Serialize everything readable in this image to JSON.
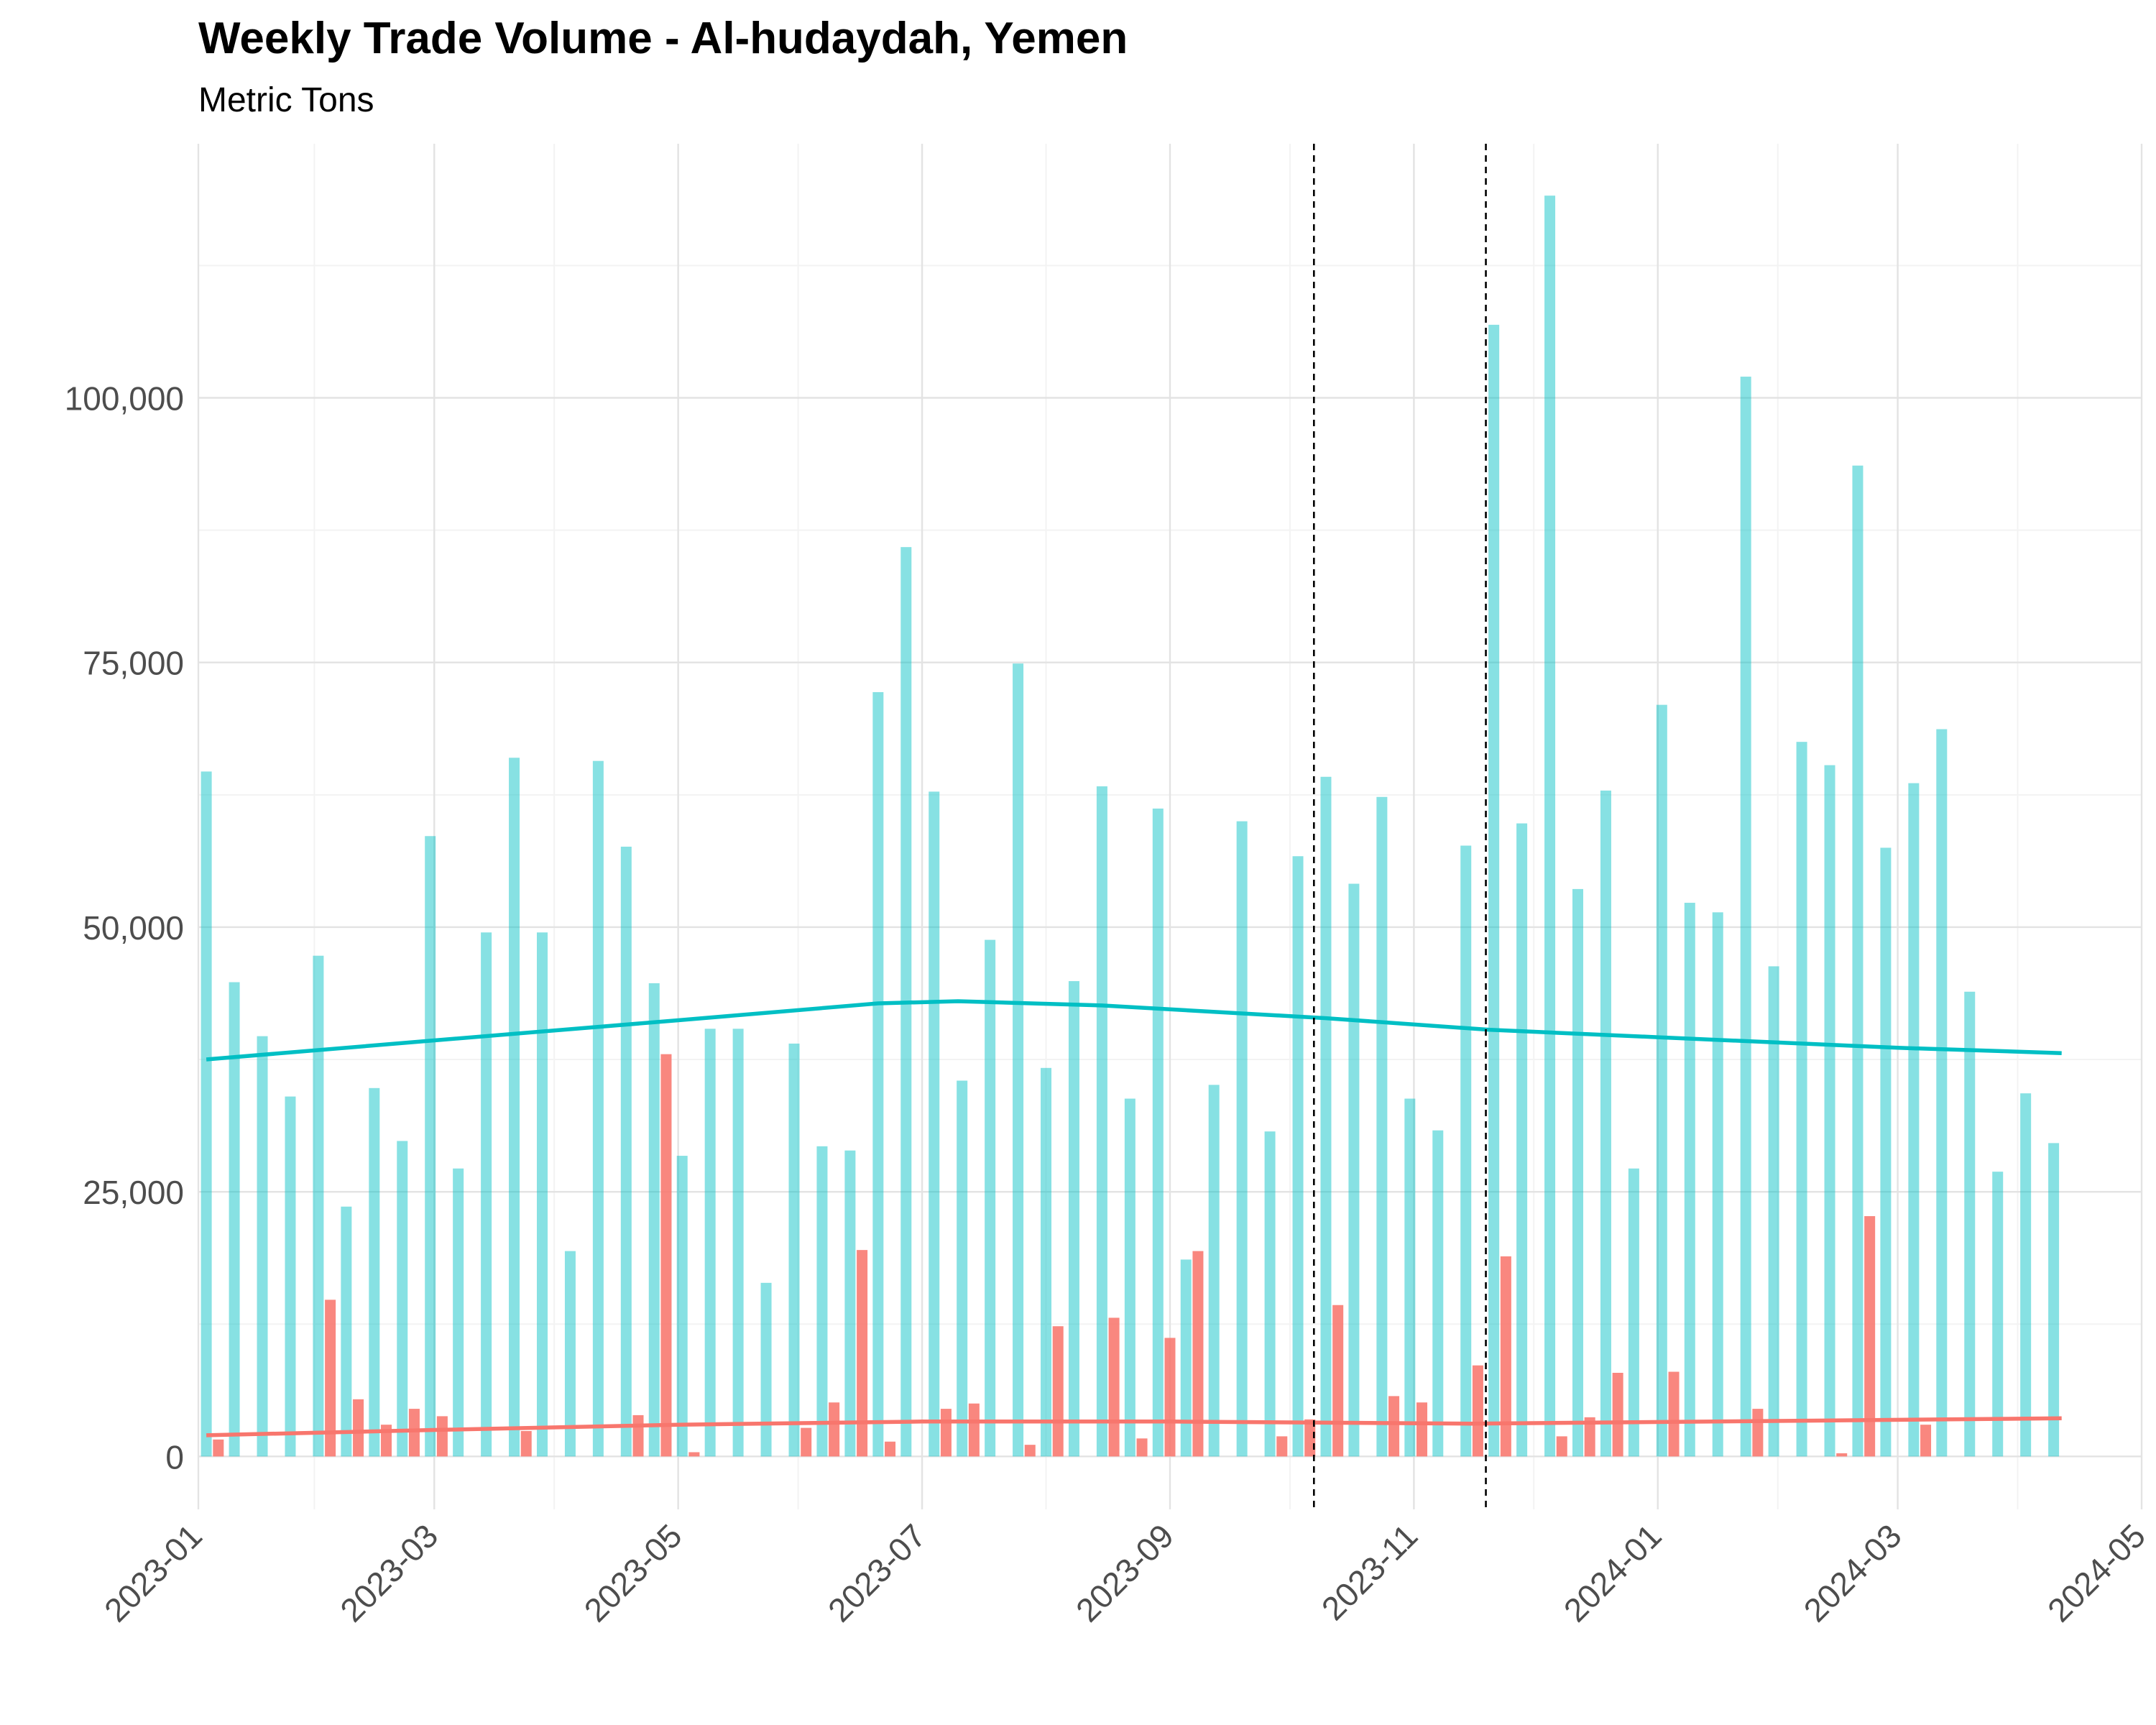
{
  "chart_data": {
    "type": "bar",
    "title": "Weekly Trade Volume - Al-hudaydah, Yemen",
    "subtitle": "Metric Tons",
    "xlabel": "",
    "ylabel": "",
    "x_axis": {
      "type": "date",
      "range": [
        "2023-01-01",
        "2024-05-01"
      ],
      "tick_labels": [
        "2023-01",
        "2023-03",
        "2023-05",
        "2023-07",
        "2023-09",
        "2023-11",
        "2024-01",
        "2024-03",
        "2024-05"
      ]
    },
    "y_axis": {
      "range": [
        -5000,
        124000
      ],
      "ticks": [
        0,
        25000,
        50000,
        75000,
        100000
      ],
      "tick_labels": [
        "0",
        "25,000",
        "50,000",
        "75,000",
        "100,000"
      ]
    },
    "grid": true,
    "legend": "none",
    "colors": {
      "cyan": "#00BFC4",
      "red": "#F8766D"
    },
    "series": [
      {
        "color": "#00BFC4",
        "kind": "bars",
        "points": [
          [
            "2023-01-03",
            64700
          ],
          [
            "2023-01-10",
            44800
          ],
          [
            "2023-01-17",
            39700
          ],
          [
            "2023-01-24",
            34000
          ],
          [
            "2023-01-31",
            47300
          ],
          [
            "2023-02-07",
            23600
          ],
          [
            "2023-02-14",
            34800
          ],
          [
            "2023-02-21",
            29800
          ],
          [
            "2023-02-28",
            58600
          ],
          [
            "2023-03-07",
            27200
          ],
          [
            "2023-03-14",
            49500
          ],
          [
            "2023-03-21",
            66000
          ],
          [
            "2023-03-28",
            49500
          ],
          [
            "2023-04-04",
            19400
          ],
          [
            "2023-04-11",
            65700
          ],
          [
            "2023-04-18",
            57600
          ],
          [
            "2023-04-25",
            44700
          ],
          [
            "2023-05-02",
            28400
          ],
          [
            "2023-05-09",
            40400
          ],
          [
            "2023-05-16",
            40400
          ],
          [
            "2023-05-23",
            16400
          ],
          [
            "2023-05-30",
            39000
          ],
          [
            "2023-06-06",
            29300
          ],
          [
            "2023-06-13",
            28900
          ],
          [
            "2023-06-20",
            72200
          ],
          [
            "2023-06-27",
            85900
          ],
          [
            "2023-07-04",
            62800
          ],
          [
            "2023-07-11",
            35500
          ],
          [
            "2023-07-18",
            48800
          ],
          [
            "2023-07-25",
            74900
          ],
          [
            "2023-08-01",
            36700
          ],
          [
            "2023-08-08",
            44900
          ],
          [
            "2023-08-15",
            63300
          ],
          [
            "2023-08-22",
            33800
          ],
          [
            "2023-08-29",
            61200
          ],
          [
            "2023-09-05",
            18600
          ],
          [
            "2023-09-12",
            35100
          ],
          [
            "2023-09-19",
            60000
          ],
          [
            "2023-09-26",
            30700
          ],
          [
            "2023-10-03",
            56700
          ],
          [
            "2023-10-10",
            64200
          ],
          [
            "2023-10-17",
            54100
          ],
          [
            "2023-10-24",
            62300
          ],
          [
            "2023-10-31",
            33800
          ],
          [
            "2023-11-07",
            30800
          ],
          [
            "2023-11-14",
            57700
          ],
          [
            "2023-11-21",
            106900
          ],
          [
            "2023-11-28",
            59800
          ],
          [
            "2023-12-05",
            119100
          ],
          [
            "2023-12-12",
            53600
          ],
          [
            "2023-12-19",
            62900
          ],
          [
            "2023-12-26",
            27200
          ],
          [
            "2024-01-02",
            71000
          ],
          [
            "2024-01-09",
            52300
          ],
          [
            "2024-01-16",
            51400
          ],
          [
            "2024-01-23",
            102000
          ],
          [
            "2024-01-30",
            46300
          ],
          [
            "2024-02-06",
            67500
          ],
          [
            "2024-02-13",
            65300
          ],
          [
            "2024-02-20",
            93600
          ],
          [
            "2024-02-27",
            57500
          ],
          [
            "2024-03-05",
            63600
          ],
          [
            "2024-03-12",
            68700
          ],
          [
            "2024-03-19",
            43900
          ],
          [
            "2024-03-26",
            26900
          ],
          [
            "2024-04-02",
            34300
          ],
          [
            "2024-04-09",
            29600
          ]
        ]
      },
      {
        "color": "#F8766D",
        "kind": "bars",
        "points": [
          [
            "2023-01-06",
            1600
          ],
          [
            "2023-02-03",
            14800
          ],
          [
            "2023-02-10",
            5400
          ],
          [
            "2023-02-17",
            3000
          ],
          [
            "2023-02-24",
            4500
          ],
          [
            "2023-03-03",
            3800
          ],
          [
            "2023-03-24",
            2400
          ],
          [
            "2023-04-21",
            3900
          ],
          [
            "2023-04-28",
            38000
          ],
          [
            "2023-05-05",
            400
          ],
          [
            "2023-06-02",
            2700
          ],
          [
            "2023-06-09",
            5100
          ],
          [
            "2023-06-16",
            19500
          ],
          [
            "2023-06-23",
            1400
          ],
          [
            "2023-07-07",
            4500
          ],
          [
            "2023-07-14",
            5000
          ],
          [
            "2023-07-28",
            1100
          ],
          [
            "2023-08-04",
            12300
          ],
          [
            "2023-08-18",
            13100
          ],
          [
            "2023-08-25",
            1700
          ],
          [
            "2023-09-01",
            11200
          ],
          [
            "2023-09-08",
            19400
          ],
          [
            "2023-09-29",
            1900
          ],
          [
            "2023-10-06",
            3500
          ],
          [
            "2023-10-13",
            14300
          ],
          [
            "2023-10-27",
            5700
          ],
          [
            "2023-11-03",
            5100
          ],
          [
            "2023-11-17",
            8600
          ],
          [
            "2023-11-24",
            18900
          ],
          [
            "2023-12-08",
            1900
          ],
          [
            "2023-12-15",
            3700
          ],
          [
            "2023-12-22",
            7900
          ],
          [
            "2024-01-05",
            8000
          ],
          [
            "2024-01-26",
            4500
          ],
          [
            "2024-02-16",
            300
          ],
          [
            "2024-02-23",
            22700
          ],
          [
            "2024-03-08",
            3000
          ]
        ]
      },
      {
        "color": "#00BFC4",
        "kind": "trend-line",
        "points": [
          [
            "2023-01-03",
            37500
          ],
          [
            "2023-03-01",
            39300
          ],
          [
            "2023-05-01",
            41200
          ],
          [
            "2023-06-20",
            42800
          ],
          [
            "2023-07-10",
            43000
          ],
          [
            "2023-08-15",
            42600
          ],
          [
            "2023-10-10",
            41400
          ],
          [
            "2023-11-20",
            40300
          ],
          [
            "2024-01-01",
            39600
          ],
          [
            "2024-03-01",
            38600
          ],
          [
            "2024-04-11",
            38100
          ]
        ]
      },
      {
        "color": "#F8766D",
        "kind": "trend-line",
        "points": [
          [
            "2023-01-03",
            2000
          ],
          [
            "2023-03-01",
            2500
          ],
          [
            "2023-05-01",
            3000
          ],
          [
            "2023-07-01",
            3300
          ],
          [
            "2023-09-01",
            3300
          ],
          [
            "2023-11-15",
            3100
          ],
          [
            "2024-01-15",
            3300
          ],
          [
            "2024-04-11",
            3600
          ]
        ]
      }
    ],
    "annotations": [
      {
        "kind": "vertical-dashed-line",
        "x": "2023-10-07"
      },
      {
        "kind": "vertical-dashed-line",
        "x": "2023-11-19"
      }
    ]
  }
}
